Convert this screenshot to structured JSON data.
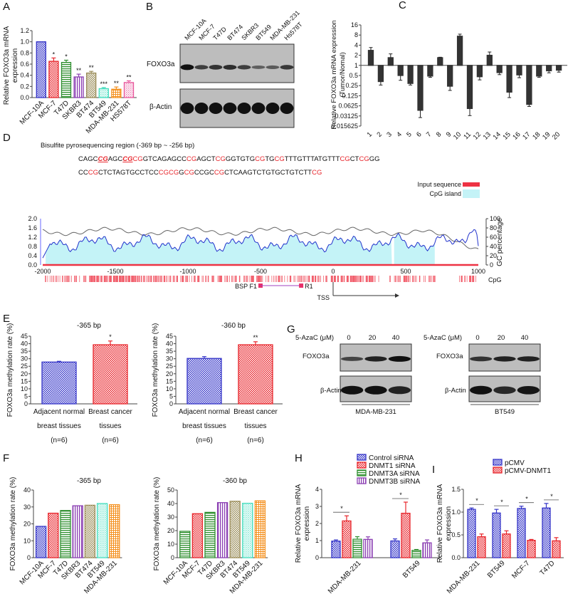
{
  "panel_labels": {
    "A": "A",
    "B": "B",
    "C": "C",
    "D": "D",
    "E": "E",
    "F": "F",
    "G": "G",
    "H": "H",
    "I": "I"
  },
  "colors": {
    "blue": "#3535c8",
    "red": "#e8262c",
    "green": "#2f8f2f",
    "purple": "#8b3fb3",
    "khaki": "#9a8c58",
    "aqua": "#3fdcbc",
    "orange": "#f4901e",
    "pink": "#e8569c",
    "gray_bar": "#333333",
    "cyan": "#c4f3f7",
    "cpg_red": "#ee3344"
  },
  "chart_data": [
    {
      "id": "A",
      "type": "bar",
      "ylabel": "Relative FOXO3a mRNA expression",
      "ylim": [
        0,
        1.2
      ],
      "yticks": [
        "0.0",
        "0.2",
        "0.4",
        "0.6",
        "0.8",
        "1.0",
        "1.2"
      ],
      "categories": [
        "MCF-10A",
        "MCF-7",
        "T47D",
        "SKBR3",
        "BT474",
        "BT549",
        "MDA-MB-231",
        "HS578T"
      ],
      "values": [
        1.0,
        0.65,
        0.63,
        0.37,
        0.44,
        0.16,
        0.15,
        0.27
      ],
      "errors": [
        0,
        0.06,
        0.04,
        0.05,
        0.03,
        0.02,
        0.04,
        0.03
      ],
      "significance": [
        "",
        "*",
        "*",
        "**",
        "**",
        "***",
        "**",
        "**"
      ],
      "colors": [
        "blue",
        "red",
        "green",
        "purple",
        "khaki",
        "aqua",
        "orange",
        "pink"
      ]
    },
    {
      "id": "C",
      "type": "bar",
      "ylabel": "Relative FOXO3a mRNA expression (Tumor/Nomal)",
      "scale": "log2",
      "baseline": 1,
      "yticks": [
        "16",
        "8",
        "4",
        "2",
        "1",
        "0.5",
        "0.25",
        "0.125",
        "0.0625",
        "0.03125",
        "0.015625"
      ],
      "categories": [
        "1",
        "2",
        "3",
        "4",
        "5",
        "6",
        "7",
        "8",
        "9",
        "10",
        "11",
        "12",
        "13",
        "14",
        "15",
        "16",
        "17",
        "18",
        "19",
        "20"
      ],
      "values": [
        2.8,
        0.33,
        1.7,
        0.5,
        0.29,
        0.046,
        0.48,
        1.7,
        0.24,
        7.4,
        0.052,
        0.46,
        2.0,
        0.61,
        0.16,
        0.52,
        0.069,
        0.48,
        0.69,
        0.72
      ],
      "error_ends": [
        3.4,
        0.26,
        2.2,
        0.36,
        0.26,
        0.028,
        0.44,
        1.75,
        0.18,
        8.5,
        0.032,
        0.37,
        2.5,
        0.53,
        0.11,
        0.43,
        0.06,
        0.44,
        0.6,
        0.63
      ]
    },
    {
      "id": "D",
      "type": "line",
      "title": "Bisulfite pyrosequencing region (-369 bp ~ -256 bp)",
      "sequence_lines": [
        [
          [
            "CAGC",
            0
          ],
          [
            "CG",
            2
          ],
          [
            "AGC",
            0
          ],
          [
            "CG",
            2
          ],
          [
            "CG",
            1
          ],
          [
            "GTCAGAGCC",
            0
          ],
          [
            "CG",
            1
          ],
          [
            "AGCT",
            0
          ],
          [
            "CG",
            1
          ],
          [
            "GGTGTG",
            0
          ],
          [
            "CG",
            1
          ],
          [
            "TG",
            0
          ],
          [
            "CG",
            1
          ],
          [
            "TTTGTTTATGTTT",
            0
          ],
          [
            "CG",
            1
          ],
          [
            "CT",
            0
          ],
          [
            "CG",
            1
          ],
          [
            "GG",
            0
          ]
        ],
        [
          [
            "CC",
            0
          ],
          [
            "CG",
            1
          ],
          [
            "CTCTAGTGCCTCC",
            0
          ],
          [
            "CGCG",
            1
          ],
          [
            "G",
            0
          ],
          [
            "CG",
            1
          ],
          [
            "CCGC",
            0
          ],
          [
            "CG",
            1
          ],
          [
            "CTCAAGTCTGTGCTGTCTT",
            0
          ],
          [
            "CG",
            1
          ]
        ]
      ],
      "legend": [
        "Input sequence",
        "CpG island"
      ],
      "yticks_left": [
        "0.0",
        "0.4",
        "0.8",
        "1.2",
        "1.6",
        "2.0"
      ],
      "yticks_right": [
        "0",
        "20",
        "40",
        "60",
        "80",
        "100"
      ],
      "ylabel_right": "GC percentage",
      "xticks": [
        "-2000",
        "-1500",
        "-1000",
        "-500",
        "0",
        "500",
        "1000"
      ],
      "xlim": [
        -2000,
        1000
      ],
      "cpg_label": "CpG",
      "cpg_island_ranges": [
        [
          -1980,
          405
        ],
        [
          420,
          700
        ]
      ],
      "primers": {
        "label": "BSP",
        "forward": "F1",
        "reverse": "R1",
        "forward_pos": -500,
        "reverse_pos": -220
      },
      "tss_label": "TSS"
    },
    {
      "id": "E1",
      "type": "bar",
      "title": "-365 bp",
      "ylabel": "FOXO3a methylation rate (%)",
      "ylim": [
        0,
        45
      ],
      "yticks": [
        "0",
        "5",
        "10",
        "15",
        "20",
        "25",
        "30",
        "35",
        "40",
        "45"
      ],
      "categories": [
        [
          "Adjacent normal",
          "breast tissues",
          "(n=6)"
        ],
        [
          "Breast cancer",
          "tissues",
          "(n=6)"
        ]
      ],
      "values": [
        27.8,
        39.3
      ],
      "errors": [
        0.5,
        2.5
      ],
      "significance": [
        "",
        "*"
      ],
      "colors": [
        "blue",
        "red"
      ]
    },
    {
      "id": "E2",
      "type": "bar",
      "title": "-360 bp",
      "ylabel": "FOXO3a methylation rate (%)",
      "ylim": [
        0,
        45
      ],
      "yticks": [
        "0",
        "5",
        "10",
        "15",
        "20",
        "25",
        "30",
        "35",
        "40",
        "45"
      ],
      "categories": [
        [
          "Adjacent normal",
          "breast tissues",
          "(n=6)"
        ],
        [
          "Breast cancer",
          "tissues",
          "(n=6)"
        ]
      ],
      "values": [
        30.2,
        39.3
      ],
      "errors": [
        1.2,
        2.0
      ],
      "significance": [
        "",
        "**"
      ],
      "colors": [
        "blue",
        "red"
      ]
    },
    {
      "id": "F1",
      "type": "bar",
      "title": "-365 bp",
      "ylabel": "FOXO3a methylation rate (%)",
      "ylim": [
        0,
        40
      ],
      "yticks": [
        "0",
        "10",
        "20",
        "30",
        "40"
      ],
      "categories": [
        "MCF-10A",
        "MCF-7",
        "T47D",
        "SKBR3",
        "BT474",
        "BT549",
        "MDA-MB-231"
      ],
      "values": [
        18.5,
        26.3,
        27.9,
        30.7,
        31.0,
        32.0,
        31.3
      ],
      "colors": [
        "blue",
        "red",
        "green",
        "purple",
        "khaki",
        "aqua",
        "orange"
      ]
    },
    {
      "id": "F2",
      "type": "bar",
      "title": "-360 bp",
      "ylabel": "FOXO3a methylation rate (%)",
      "ylim": [
        0,
        50
      ],
      "yticks": [
        "0",
        "10",
        "20",
        "30",
        "40",
        "50"
      ],
      "categories": [
        "MCF-10A",
        "MCF-7",
        "T47D",
        "SKBR3",
        "BT474",
        "BT549",
        "MDA-MB-231"
      ],
      "values": [
        19.5,
        32.5,
        33.5,
        40.7,
        41.7,
        40.2,
        42.0
      ],
      "colors": [
        "green",
        "red",
        "green",
        "purple",
        "khaki",
        "aqua",
        "orange"
      ]
    },
    {
      "id": "H",
      "type": "bar",
      "ylabel": "Relative FOXO3a mRNA expression",
      "ylim": [
        0,
        4
      ],
      "yticks": [
        "0",
        "1",
        "2",
        "3",
        "4"
      ],
      "categories": [
        "MDA-MB-231",
        "BT549"
      ],
      "series": [
        {
          "name": "Control siRNA",
          "color": "blue",
          "values": [
            0.97,
            0.98
          ],
          "errors": [
            0.07,
            0.12
          ]
        },
        {
          "name": "DNMT1 siRNA",
          "color": "red",
          "values": [
            2.15,
            2.6
          ],
          "errors": [
            0.3,
            0.65
          ]
        },
        {
          "name": "DNMT3A siRNA",
          "color": "green",
          "values": [
            1.08,
            0.43
          ],
          "errors": [
            0.15,
            0.05
          ]
        },
        {
          "name": "DNMT3B siRNA",
          "color": "purple",
          "values": [
            1.07,
            0.87
          ],
          "errors": [
            0.15,
            0.17
          ]
        }
      ],
      "significance": [
        "*",
        "*"
      ]
    },
    {
      "id": "I",
      "type": "bar",
      "ylabel": "Relative FOXO3a mRNA expression",
      "ylim": [
        0,
        1.5
      ],
      "yticks": [
        "0.0",
        "0.5",
        "1.0",
        "1.5"
      ],
      "categories": [
        "MDA-MB-231",
        "BT549",
        "MCF-7",
        "T47D"
      ],
      "series": [
        {
          "name": "pCMV",
          "color": "blue",
          "values": [
            1.06,
            0.98,
            1.08,
            1.09
          ],
          "errors": [
            0.03,
            0.08,
            0.05,
            0.1
          ]
        },
        {
          "name": "pCMV-DNMT1",
          "color": "red",
          "values": [
            0.46,
            0.52,
            0.38,
            0.37
          ],
          "errors": [
            0.06,
            0.07,
            0.02,
            0.07
          ]
        }
      ],
      "significance": [
        "*",
        "*",
        "*",
        "*"
      ]
    }
  ],
  "blots": {
    "B": {
      "lanes": [
        "MCF-10A",
        "MCF-7",
        "T47D",
        "BT474",
        "SKBR3",
        "BT549",
        "MDA-MB-231",
        "Hs578T"
      ],
      "rows": [
        "FOXO3a",
        "β-Actin"
      ],
      "band_intensity": [
        [
          1.0,
          0.6,
          0.7,
          0.75,
          0.6,
          0.3,
          0.35,
          0.65
        ],
        [
          1,
          1,
          1,
          1,
          1,
          1,
          1,
          1
        ]
      ]
    },
    "G1": {
      "treatment_label": "5-AzaC (μM)",
      "doses": [
        "0",
        "20",
        "40"
      ],
      "rows": [
        "FOXO3a",
        "β-Actin"
      ],
      "cell_line": "MDA-MB-231",
      "band_intensity": [
        [
          0.55,
          0.85,
          1.0
        ],
        [
          1,
          1,
          0.85
        ]
      ]
    },
    "G2": {
      "treatment_label": "5-AzaC (μM)",
      "doses": [
        "0",
        "20",
        "40"
      ],
      "rows": [
        "FOXO3a",
        "β-Actin"
      ],
      "cell_line": "BT549",
      "band_intensity": [
        [
          0.7,
          0.85,
          0.85
        ],
        [
          1,
          0.8,
          0.95
        ]
      ]
    }
  }
}
